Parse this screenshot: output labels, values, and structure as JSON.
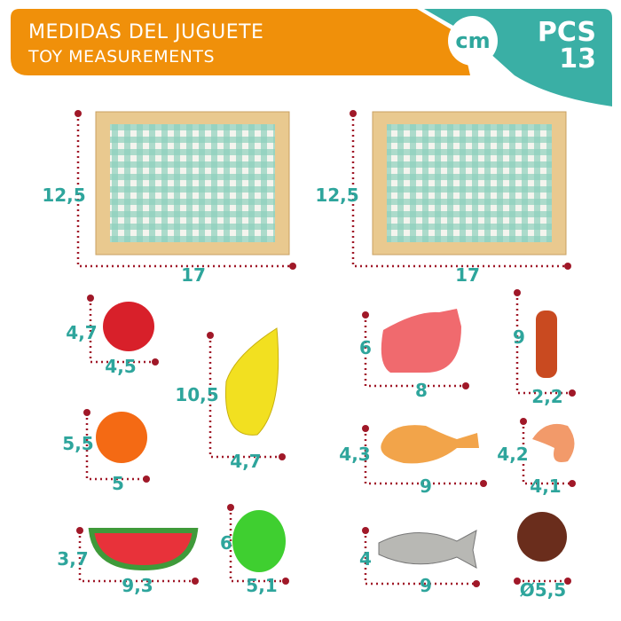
{
  "header": {
    "title": "MEDIDAS DEL JUGUETE",
    "subtitle": "TOY MEASUREMENTS",
    "unit_badge": "cm",
    "pieces_label": "PCS",
    "pieces_count": "13"
  },
  "colors": {
    "orange": "#f0900a",
    "teal": "#3aafa5",
    "measure_text": "#2ea59c",
    "dotted_line": "#a01828"
  },
  "items": [
    {
      "name": "crate-1",
      "height": "12,5",
      "width": "17"
    },
    {
      "name": "crate-2",
      "height": "12,5",
      "width": "17"
    },
    {
      "name": "strawberry",
      "height": "4,7",
      "width": "4,5"
    },
    {
      "name": "orange",
      "height": "5,5",
      "width": "5"
    },
    {
      "name": "watermelon",
      "height": "3,7",
      "width": "9,3"
    },
    {
      "name": "banana",
      "height": "10,5",
      "width": "4,7"
    },
    {
      "name": "apple",
      "height": "6",
      "width": "5,1"
    },
    {
      "name": "ham",
      "height": "6",
      "width": "8"
    },
    {
      "name": "sausage",
      "height": "9",
      "width": "2,2"
    },
    {
      "name": "chicken-leg",
      "height": "4,3",
      "width": "9"
    },
    {
      "name": "shrimp",
      "height": "4,2",
      "width": "4,1"
    },
    {
      "name": "fish",
      "height": "4",
      "width": "9"
    },
    {
      "name": "burger-patty",
      "diameter": "Ø5,5"
    }
  ]
}
